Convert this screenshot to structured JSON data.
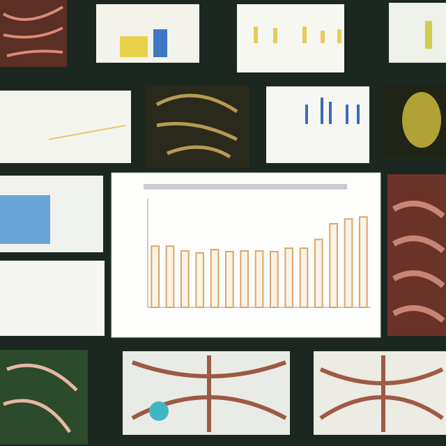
{
  "chart_data": {
    "type": "bar",
    "values": [
      90,
      90,
      83,
      80,
      85,
      82,
      83,
      83,
      82,
      87,
      87,
      100,
      123,
      130,
      133
    ],
    "color": "#d9a66e",
    "ylim": [
      0,
      160
    ]
  }
}
